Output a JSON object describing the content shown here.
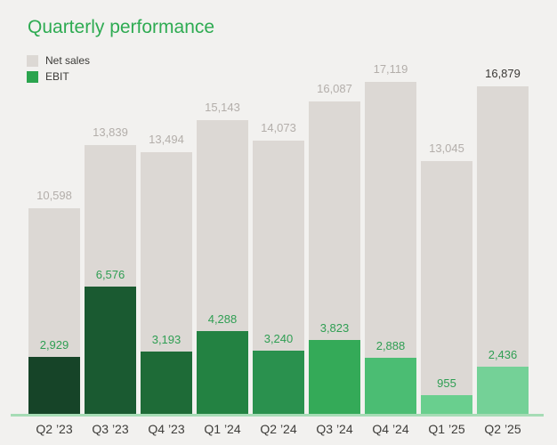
{
  "page": {
    "background": "#f2f1ef"
  },
  "chart": {
    "title": "Quarterly performance",
    "title_color": "#2eab52",
    "legend": [
      {
        "label": "Net sales",
        "color": "#dcd8d4"
      },
      {
        "label": "EBIT",
        "color": "#2ba44e"
      }
    ]
  },
  "chart_data": {
    "type": "bar",
    "title": "Quarterly performance",
    "categories": [
      "Q2 ’23",
      "Q3 ’23",
      "Q4 ’23",
      "Q1 ’24",
      "Q2 ’24",
      "Q3 ’24",
      "Q4 ’24",
      "Q1 ’25",
      "Q2 ’25"
    ],
    "series": [
      {
        "name": "Net sales",
        "values": [
          10598,
          13839,
          13494,
          15143,
          14073,
          16087,
          17119,
          13045,
          16879
        ],
        "bar_color": "#dcd8d4",
        "label_color": "#b3aeaa"
      },
      {
        "name": "EBIT",
        "values": [
          2929,
          6576,
          3193,
          4288,
          3240,
          3823,
          2888,
          955,
          2436
        ],
        "bar_colors": [
          "#164428",
          "#1a5a31",
          "#1e6b37",
          "#238242",
          "#2a914e",
          "#34aa58",
          "#4bbd73",
          "#69cf8e",
          "#74d197"
        ],
        "label_color": "#2f9e53"
      }
    ],
    "bar_style": "overlaid",
    "highlighted_category_index": 8,
    "highlight_label_color": "#3b3936",
    "ylim": [
      0,
      17119
    ],
    "grid": false,
    "legend_position": "top-left",
    "baseline_color": "#a6dcb5",
    "xlabel": "",
    "ylabel": ""
  }
}
